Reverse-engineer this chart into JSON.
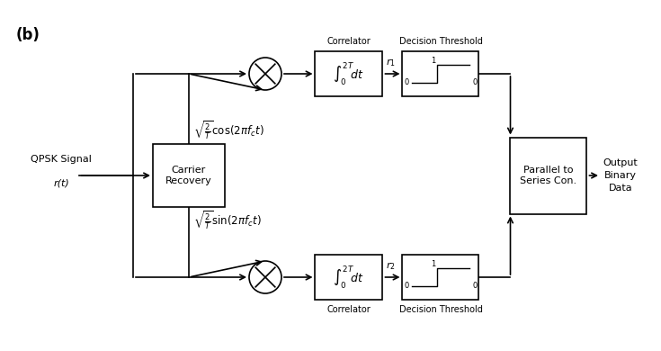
{
  "bg_color": "#ffffff",
  "title_label": "(b)",
  "cos_label": "$\\sqrt{\\frac{2}{T}}\\cos(2\\pi f_c t)$",
  "sin_label": "$\\sqrt{\\frac{2}{T}}\\sin(2\\pi f_c t)$",
  "r1_label": "$r_1$",
  "r2_label": "$r_2$",
  "correlator_label": "Correlator",
  "decision_label": "Decision Threshold",
  "carrier_label": "Carrier\nRecovery",
  "parallel_label": "Parallel to\nSeries Con.",
  "input_line1": "QPSK Signal",
  "input_line2": "r(t)",
  "output_line1": "Output",
  "output_line2": "Binary",
  "output_line3": "Data",
  "int_label": "$\\int_0^{2T}\\!dt$",
  "lw": 1.2,
  "fs_main": 8,
  "fs_small": 7,
  "fs_title": 12
}
